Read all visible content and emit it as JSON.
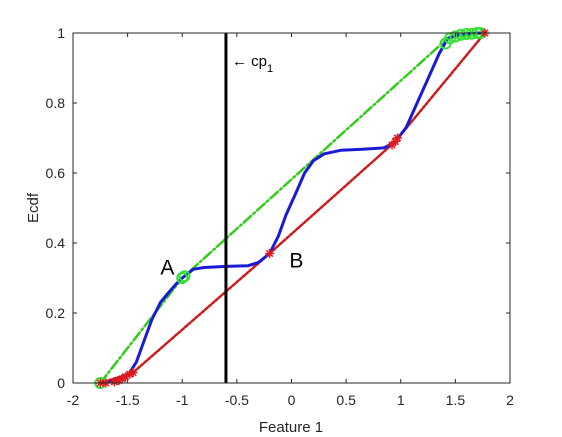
{
  "chart_data": {
    "type": "line",
    "title": "",
    "xlabel": "Feature 1",
    "ylabel": "Ecdf",
    "xlim": [
      -2,
      2
    ],
    "ylim": [
      0,
      1
    ],
    "xticks": [
      -2,
      -1.5,
      -1,
      -0.5,
      0,
      0.5,
      1,
      1.5,
      2
    ],
    "xtick_labels": [
      "-2",
      "-1.5",
      "-1",
      "-0.5",
      "0",
      "0.5",
      "1",
      "1.5",
      "2"
    ],
    "yticks": [
      0,
      0.2,
      0.4,
      0.6,
      0.8,
      1
    ],
    "ytick_labels": [
      "0",
      "0.2",
      "0.4",
      "0.6",
      "0.8",
      "1"
    ],
    "grid": false,
    "legend": "none",
    "series": [
      {
        "style": "solid",
        "color": "#1a1ad6",
        "points": [
          [
            -1.75,
            0.0
          ],
          [
            -1.62,
            0.005
          ],
          [
            -1.55,
            0.015
          ],
          [
            -1.48,
            0.03
          ],
          [
            -1.42,
            0.06
          ],
          [
            -1.35,
            0.12
          ],
          [
            -1.28,
            0.18
          ],
          [
            -1.2,
            0.23
          ],
          [
            -1.12,
            0.26
          ],
          [
            -1.05,
            0.285
          ],
          [
            -1.0,
            0.3
          ],
          [
            -0.9,
            0.325
          ],
          [
            -0.8,
            0.33
          ],
          [
            -0.6,
            0.333
          ],
          [
            -0.4,
            0.335
          ],
          [
            -0.3,
            0.345
          ],
          [
            -0.2,
            0.37
          ],
          [
            -0.12,
            0.42
          ],
          [
            -0.05,
            0.48
          ],
          [
            0.05,
            0.55
          ],
          [
            0.12,
            0.6
          ],
          [
            0.2,
            0.635
          ],
          [
            0.3,
            0.655
          ],
          [
            0.45,
            0.665
          ],
          [
            0.65,
            0.668
          ],
          [
            0.85,
            0.672
          ],
          [
            0.95,
            0.69
          ],
          [
            1.05,
            0.73
          ],
          [
            1.15,
            0.8
          ],
          [
            1.25,
            0.87
          ],
          [
            1.35,
            0.94
          ],
          [
            1.43,
            0.985
          ],
          [
            1.55,
            0.997
          ],
          [
            1.7,
            1.0
          ],
          [
            1.77,
            1.0
          ]
        ]
      },
      {
        "style": "dashdot",
        "color": "#33cc1a",
        "points": [
          [
            -1.75,
            0.0
          ],
          [
            -1.0,
            0.3
          ],
          [
            1.43,
            0.985
          ],
          [
            1.77,
            1.0
          ]
        ]
      },
      {
        "style": "dotted",
        "color": "#cc1a1a",
        "points": [
          [
            -1.75,
            0.0
          ],
          [
            -1.45,
            0.03
          ],
          [
            -0.2,
            0.37
          ],
          [
            0.95,
            0.69
          ],
          [
            1.77,
            1.0
          ]
        ]
      }
    ],
    "markers": {
      "green": {
        "color": "#33e033",
        "points": [
          [
            -1.75,
            0.0
          ],
          [
            -1.0,
            0.3
          ],
          [
            -0.98,
            0.305
          ],
          [
            1.41,
            0.97
          ],
          [
            1.45,
            0.985
          ],
          [
            1.5,
            0.99
          ],
          [
            1.55,
            0.995
          ],
          [
            1.6,
            0.997
          ],
          [
            1.65,
            0.998
          ],
          [
            1.7,
            1.0
          ],
          [
            1.73,
            1.0
          ]
        ]
      },
      "red": {
        "color": "#e01a1a",
        "points": [
          [
            -1.75,
            0.0
          ],
          [
            -1.7,
            0.0
          ],
          [
            -1.62,
            0.003
          ],
          [
            -1.58,
            0.007
          ],
          [
            -1.55,
            0.012
          ],
          [
            -1.52,
            0.018
          ],
          [
            -1.48,
            0.025
          ],
          [
            -1.45,
            0.03
          ],
          [
            -0.2,
            0.37
          ],
          [
            0.92,
            0.68
          ],
          [
            0.95,
            0.69
          ],
          [
            0.97,
            0.7
          ],
          [
            1.77,
            1.0
          ]
        ]
      }
    },
    "vline": {
      "x": -0.6,
      "label": "← cp",
      "label_sub": "1"
    },
    "annotations": [
      {
        "text": "A",
        "x": -1.2,
        "y": 0.31
      },
      {
        "text": "B",
        "x": -0.02,
        "y": 0.33
      }
    ]
  }
}
